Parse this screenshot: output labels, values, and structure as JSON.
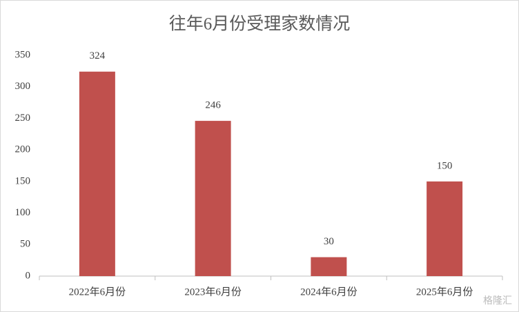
{
  "chart_data": {
    "type": "bar",
    "title": "往年6月份受理家数情况",
    "categories": [
      "2022年6月份",
      "2023年6月份",
      "2024年6月份",
      "2025年6月份"
    ],
    "values": [
      324,
      246,
      30,
      150
    ],
    "color": "#c0504d",
    "ylim": [
      0,
      350
    ],
    "yticks": [
      0,
      50,
      100,
      150,
      200,
      250,
      300,
      350
    ],
    "grid": false,
    "data_labels": true,
    "watermark": "格隆汇"
  }
}
